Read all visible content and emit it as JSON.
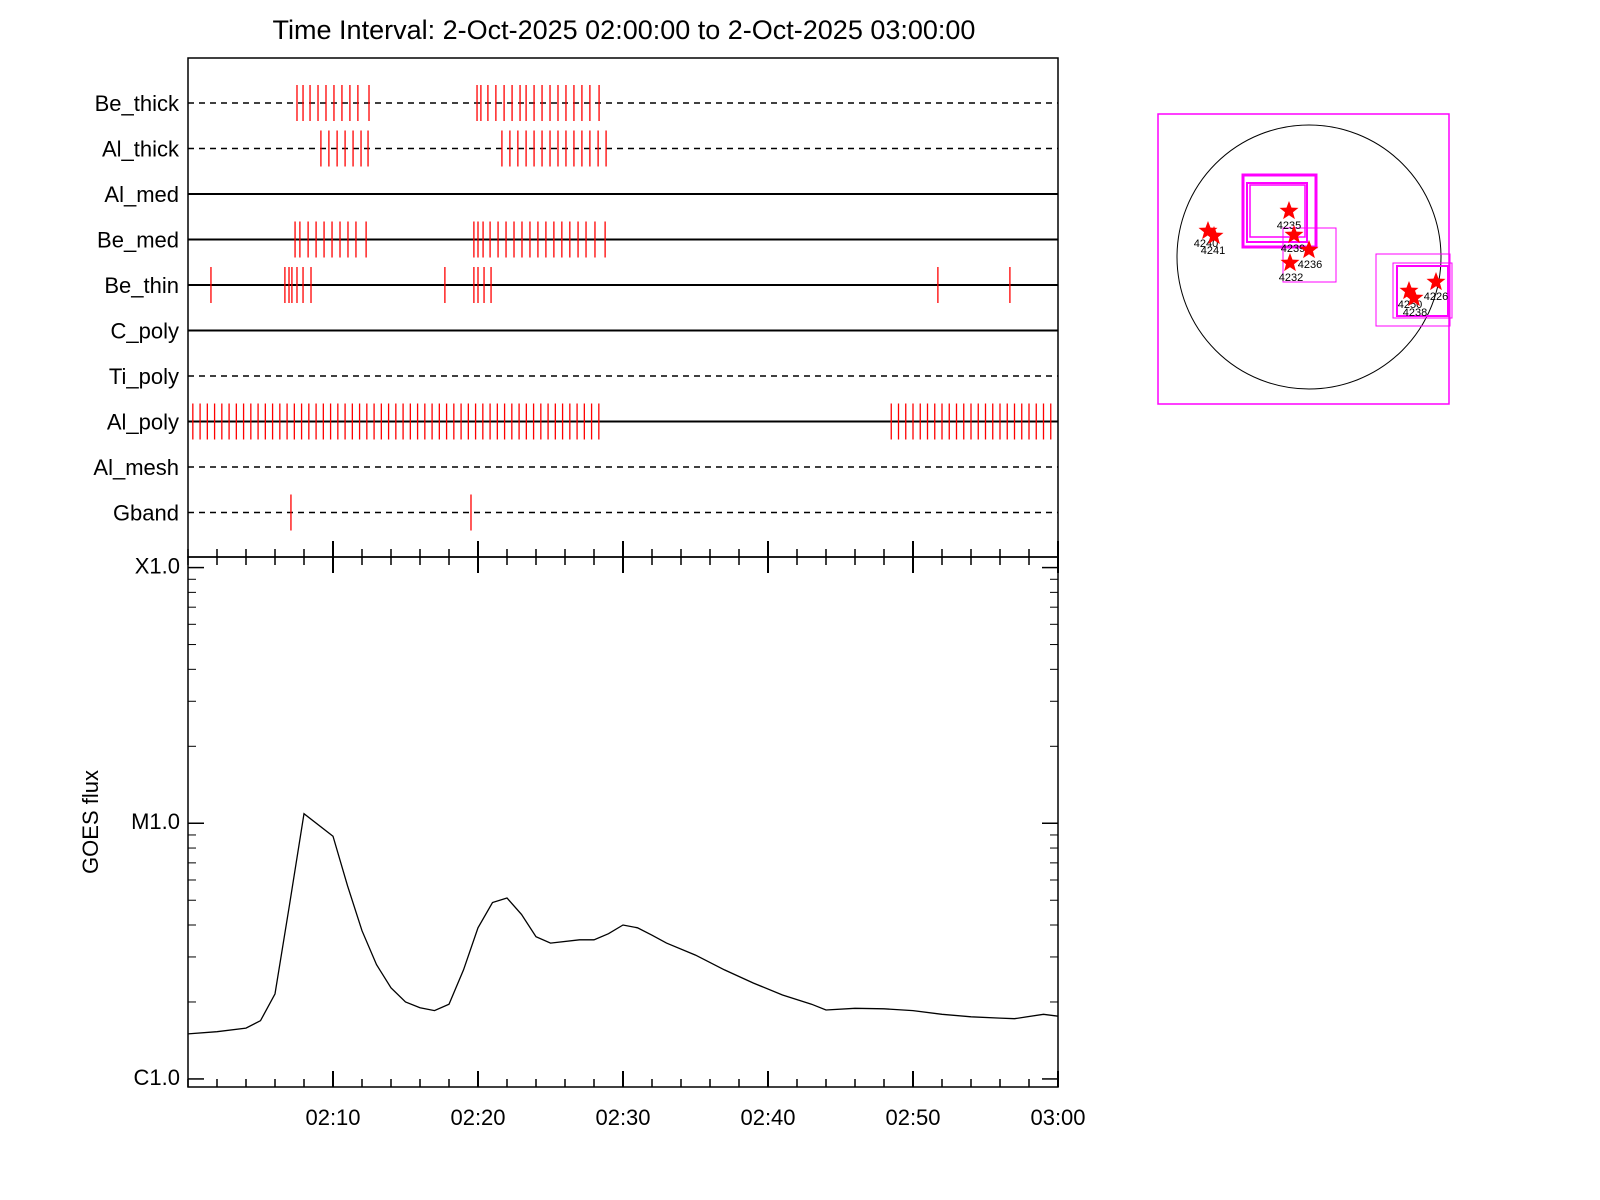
{
  "title": "Time Interval:  2-Oct-2025 02:00:00 to  2-Oct-2025 03:00:00",
  "chart_data": [
    {
      "type": "event",
      "color": "#ff0000",
      "xlim": [
        "02:00",
        "03:00"
      ],
      "rows": [
        {
          "name": "Be_thick",
          "line": "dashed",
          "events": [
            "02:07:31",
            "02:07:56",
            "02:08:25",
            "02:08:58",
            "02:09:31",
            "02:10:04",
            "02:10:37",
            "02:11:10",
            "02:11:43",
            "02:12:29",
            "02:19:56",
            "02:20:12",
            "02:20:41",
            "02:21:14",
            "02:21:48",
            "02:22:21",
            "02:22:54",
            "02:23:19",
            "02:23:52",
            "02:24:25",
            "02:24:58",
            "02:25:31",
            "02:26:04",
            "02:26:37",
            "02:27:10",
            "02:27:43",
            "02:28:21"
          ]
        },
        {
          "name": "Al_thick",
          "line": "dashed",
          "events": [
            "02:09:10",
            "02:09:43",
            "02:10:17",
            "02:10:50",
            "02:11:23",
            "02:11:56",
            "02:12:25",
            "02:21:39",
            "02:22:12",
            "02:22:45",
            "02:23:19",
            "02:23:52",
            "02:24:25",
            "02:24:58",
            "02:25:31",
            "02:26:04",
            "02:26:37",
            "02:27:10",
            "02:27:43",
            "02:28:17",
            "02:28:50"
          ]
        },
        {
          "name": "Al_med",
          "line": "solid",
          "events": []
        },
        {
          "name": "Be_med",
          "line": "solid",
          "events": [
            "02:07:23",
            "02:07:43",
            "02:08:17",
            "02:08:50",
            "02:09:23",
            "02:09:56",
            "02:10:29",
            "02:11:02",
            "02:11:35",
            "02:12:17",
            "02:19:43",
            "02:20:00",
            "02:20:21",
            "02:20:50",
            "02:21:23",
            "02:21:56",
            "02:22:29",
            "02:23:02",
            "02:23:35",
            "02:24:08",
            "02:24:41",
            "02:25:14",
            "02:25:47",
            "02:26:20",
            "02:26:54",
            "02:27:27",
            "02:28:04",
            "02:28:46"
          ]
        },
        {
          "name": "Be_thin",
          "line": "solid",
          "events": [
            "02:01:35",
            "02:06:41",
            "02:06:58",
            "02:07:10",
            "02:07:31",
            "02:07:56",
            "02:08:29",
            "02:17:43",
            "02:19:43",
            "02:20:00",
            "02:20:25",
            "02:20:54",
            "02:51:43",
            "02:56:41"
          ]
        },
        {
          "name": "C_poly",
          "line": "solid",
          "events": []
        },
        {
          "name": "Ti_poly",
          "line": "dashed",
          "events": []
        },
        {
          "name": "Al_poly",
          "line": "solid",
          "events": [
            "02:00:20",
            "02:00:50",
            "02:01:20",
            "02:01:50",
            "02:02:20",
            "02:02:50",
            "02:03:20",
            "02:03:50",
            "02:04:20",
            "02:04:50",
            "02:05:20",
            "02:05:50",
            "02:06:20",
            "02:06:50",
            "02:07:20",
            "02:07:50",
            "02:08:20",
            "02:08:50",
            "02:09:20",
            "02:09:50",
            "02:10:20",
            "02:10:50",
            "02:11:20",
            "02:11:50",
            "02:12:20",
            "02:12:50",
            "02:13:20",
            "02:13:50",
            "02:14:20",
            "02:14:50",
            "02:15:20",
            "02:15:50",
            "02:16:20",
            "02:16:50",
            "02:17:20",
            "02:17:50",
            "02:18:20",
            "02:18:50",
            "02:19:20",
            "02:19:50",
            "02:20:20",
            "02:20:50",
            "02:21:20",
            "02:21:50",
            "02:22:20",
            "02:22:50",
            "02:23:20",
            "02:23:50",
            "02:24:20",
            "02:24:50",
            "02:25:20",
            "02:25:50",
            "02:26:20",
            "02:26:50",
            "02:27:20",
            "02:27:50",
            "02:28:20",
            "02:48:30",
            "02:49:00",
            "02:49:30",
            "02:50:00",
            "02:50:30",
            "02:51:00",
            "02:51:30",
            "02:52:00",
            "02:52:30",
            "02:53:00",
            "02:53:30",
            "02:54:00",
            "02:54:30",
            "02:55:00",
            "02:55:30",
            "02:56:00",
            "02:56:30",
            "02:57:00",
            "02:57:30",
            "02:58:00",
            "02:58:30",
            "02:59:00",
            "02:59:30"
          ]
        },
        {
          "name": "Al_mesh",
          "line": "dashed",
          "events": []
        },
        {
          "name": "Gband",
          "line": "dashed",
          "events": [
            "02:07:06",
            "02:19:31"
          ]
        }
      ]
    },
    {
      "type": "line",
      "ylabel": "GOES flux",
      "color": "#000000",
      "log_y": true,
      "xlim": [
        "02:00",
        "03:00"
      ],
      "xticks": [
        "02:10",
        "02:20",
        "02:30",
        "02:40",
        "02:50",
        "03:00"
      ],
      "ylim": [
        9.3e-07,
        0.00011
      ],
      "yticks": [
        {
          "value": 1e-06,
          "label": "C1.0"
        },
        {
          "value": 1e-05,
          "label": "M1.0"
        },
        {
          "value": 0.0001,
          "label": "X1.0"
        }
      ],
      "x": [
        "02:00",
        "02:02",
        "02:04",
        "02:05",
        "02:06",
        "02:07",
        "02:08",
        "02:10",
        "02:11",
        "02:12",
        "02:13",
        "02:14",
        "02:15",
        "02:16",
        "02:17",
        "02:18",
        "02:19",
        "02:20",
        "02:21",
        "02:22",
        "02:23",
        "02:24",
        "02:25",
        "02:27",
        "02:28",
        "02:29",
        "02:30",
        "02:31",
        "02:32",
        "02:33",
        "02:35",
        "02:37",
        "02:39",
        "02:41",
        "02:43",
        "02:44",
        "02:46",
        "02:48",
        "02:50",
        "02:52",
        "02:54",
        "02:56",
        "02:57",
        "02:59",
        "03:00"
      ],
      "values": [
        1.5e-06,
        1.53e-06,
        1.58e-06,
        1.69e-06,
        2.15e-06,
        4.8e-06,
        1.09e-05,
        8.9e-06,
        5.7e-06,
        3.8e-06,
        2.8e-06,
        2.27e-06,
        2e-06,
        1.9e-06,
        1.85e-06,
        1.96e-06,
        2.67e-06,
        3.9e-06,
        4.9e-06,
        5.1e-06,
        4.4e-06,
        3.6e-06,
        3.4e-06,
        3.5e-06,
        3.5e-06,
        3.7e-06,
        4e-06,
        3.9e-06,
        3.65e-06,
        3.4e-06,
        3.05e-06,
        2.67e-06,
        2.37e-06,
        2.13e-06,
        1.96e-06,
        1.86e-06,
        1.89e-06,
        1.88e-06,
        1.85e-06,
        1.79e-06,
        1.75e-06,
        1.73e-06,
        1.72e-06,
        1.79e-06,
        1.76e-06
      ]
    }
  ],
  "map": {
    "markers": [
      {
        "label": "4235"
      },
      {
        "label": "4240"
      },
      {
        "label": "4241"
      },
      {
        "label": "4239"
      },
      {
        "label": "4236"
      },
      {
        "label": "4232"
      },
      {
        "label": "4226"
      },
      {
        "label": "4250"
      },
      {
        "label": "4238"
      }
    ]
  }
}
